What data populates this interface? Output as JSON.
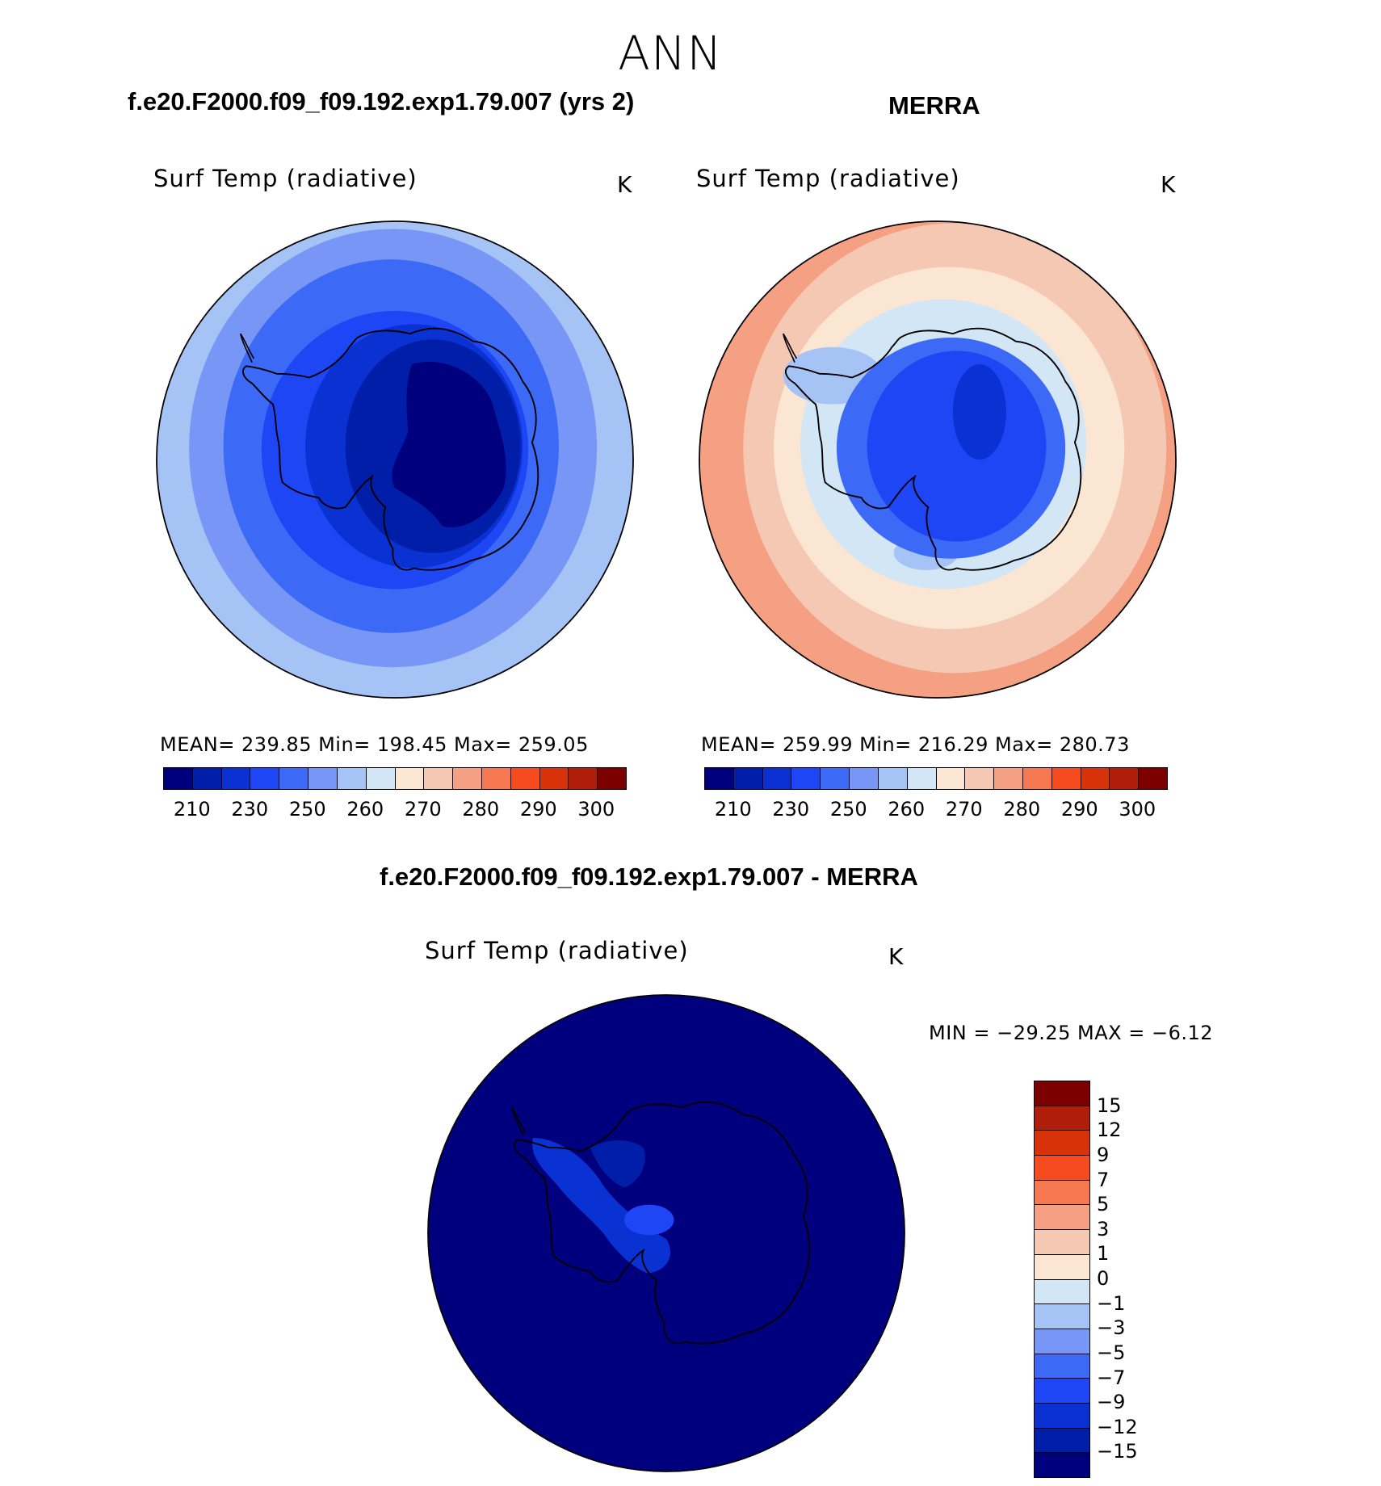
{
  "figure": {
    "season": "ANN"
  },
  "panels": [
    {
      "title": "f.e20.F2000.f09_f09.192.exp1.79.007 (yrs 2)",
      "variable": "Surf Temp (radiative)",
      "units": "K",
      "stats": "MEAN= 239.85   Min= 198.45   Max= 259.05"
    },
    {
      "title": "MERRA",
      "variable": "Surf Temp (radiative)",
      "units": "K",
      "stats": "MEAN= 259.99   Min= 216.29   Max= 280.73"
    },
    {
      "title": "f.e20.F2000.f09_f09.192.exp1.79.007 - MERRA",
      "variable": "Surf Temp (radiative)",
      "units": "K",
      "stats": "MIN = −29.25 MAX =   −6.12"
    }
  ],
  "colorbar_abs": {
    "labels": [
      "210",
      "230",
      "250",
      "260",
      "270",
      "280",
      "290",
      "300"
    ],
    "colors": [
      "#00007f",
      "#001ea8",
      "#0a32d2",
      "#1e46f5",
      "#3c69f5",
      "#7896f5",
      "#a5c3f5",
      "#d2e6f5",
      "#fae6d2",
      "#f5c8b4",
      "#f5a082",
      "#f57850",
      "#f54b1e",
      "#d7320a",
      "#af1e0a",
      "#7d0000"
    ]
  },
  "colorbar_diff": {
    "labels": [
      "−15",
      "−12",
      "−9",
      "−7",
      "−5",
      "−3",
      "−1",
      "0",
      "1",
      "3",
      "5",
      "7",
      "9",
      "12",
      "15"
    ],
    "colors": [
      "#00007f",
      "#001ea8",
      "#0a32d2",
      "#1e46f5",
      "#3c69f5",
      "#7896f5",
      "#a5c3f5",
      "#d2e6f5",
      "#fae6d2",
      "#f5c8b4",
      "#f5a082",
      "#f57850",
      "#f54b1e",
      "#d7320a",
      "#af1e0a",
      "#7d0000"
    ]
  },
  "chart_data": [
    {
      "type": "heatmap",
      "title": "f.e20.F2000.f09_f09.192.exp1.79.007 (yrs 2)",
      "projection": "south polar stereographic",
      "variable": "Surf Temp (radiative)",
      "units": "K",
      "mean": 239.85,
      "min": 198.45,
      "max": 259.05,
      "contour_levels": [
        200,
        210,
        220,
        230,
        240,
        250,
        255,
        260,
        265,
        270,
        275,
        280,
        285,
        290,
        295,
        300
      ]
    },
    {
      "type": "heatmap",
      "title": "MERRA",
      "projection": "south polar stereographic",
      "variable": "Surf Temp (radiative)",
      "units": "K",
      "mean": 259.99,
      "min": 216.29,
      "max": 280.73,
      "contour_levels": [
        200,
        210,
        220,
        230,
        240,
        250,
        255,
        260,
        265,
        270,
        275,
        280,
        285,
        290,
        295,
        300
      ]
    },
    {
      "type": "heatmap",
      "title": "f.e20.F2000.f09_f09.192.exp1.79.007 - MERRA",
      "projection": "south polar stereographic",
      "variable": "Surf Temp (radiative)",
      "units": "K",
      "min": -29.25,
      "max": -6.12,
      "contour_levels": [
        -15,
        -12,
        -9,
        -7,
        -5,
        -3,
        -1,
        0,
        1,
        3,
        5,
        7,
        9,
        12,
        15
      ]
    }
  ]
}
